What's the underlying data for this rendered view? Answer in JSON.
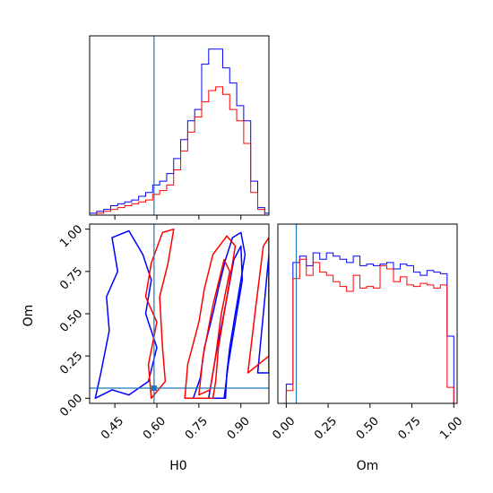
{
  "chart_data": {
    "type": "corner",
    "parameters": [
      "H0",
      "Om"
    ],
    "truth": {
      "H0": 0.59,
      "Om": 0.06
    },
    "truth_color": "#1f77b4",
    "series": [
      {
        "color": "#0000ff"
      },
      {
        "color": "#ff0000"
      }
    ],
    "panels": [
      {
        "id": "hist-H0",
        "type": "step-histogram",
        "x": "H0",
        "xlim": [
          0.36,
          1.0
        ],
        "bin_edges": [
          0.36,
          0.385,
          0.41,
          0.435,
          0.46,
          0.485,
          0.51,
          0.535,
          0.56,
          0.585,
          0.61,
          0.635,
          0.66,
          0.685,
          0.71,
          0.735,
          0.76,
          0.785,
          0.81,
          0.835,
          0.86,
          0.885,
          0.91,
          0.935,
          0.96,
          0.985,
          1.0
        ],
        "series_values": [
          [
            1,
            2,
            3,
            5,
            6,
            7,
            8,
            10,
            12,
            16,
            18,
            22,
            30,
            40,
            50,
            56,
            80,
            88,
            88,
            78,
            70,
            58,
            50,
            18,
            4,
            1
          ],
          [
            0,
            1,
            2,
            3,
            4,
            5,
            6,
            7,
            8,
            11,
            13,
            16,
            24,
            34,
            44,
            52,
            60,
            66,
            68,
            64,
            56,
            50,
            38,
            12,
            3,
            0
          ]
        ],
        "xticks": [
          0.45,
          0.6,
          0.75,
          0.9
        ],
        "show_tick_labels": false
      },
      {
        "id": "contour-H0-Om",
        "type": "contour",
        "x": "H0",
        "y": "Om",
        "xlim": [
          0.36,
          1.0
        ],
        "ylim": [
          -0.03,
          1.03
        ],
        "xticks": [
          0.45,
          0.6,
          0.75,
          0.9
        ],
        "xtick_labels": [
          "0.45",
          "0.60",
          "0.75",
          "0.90"
        ],
        "yticks": [
          0.0,
          0.25,
          0.5,
          0.75,
          1.0
        ],
        "ytick_labels": [
          "0.00",
          "0.25",
          "0.50",
          "0.75",
          "1.00"
        ],
        "xlabel": "H0",
        "ylabel": "Om",
        "series_contours": [
          [
            [
              [
                0.73,
                0.0
              ],
              [
                0.755,
                0.12
              ],
              [
                0.77,
                0.3
              ],
              [
                0.8,
                0.5
              ],
              [
                0.82,
                0.65
              ],
              [
                0.845,
                0.82
              ],
              [
                0.87,
                0.95
              ],
              [
                0.9,
                0.98
              ],
              [
                0.915,
                0.85
              ],
              [
                0.9,
                0.7
              ],
              [
                0.88,
                0.5
              ],
              [
                0.86,
                0.3
              ],
              [
                0.85,
                0.15
              ],
              [
                0.845,
                0.0
              ]
            ],
            [
              [
                0.785,
                0.0
              ],
              [
                0.81,
                0.25
              ],
              [
                0.845,
                0.55
              ],
              [
                0.875,
                0.82
              ],
              [
                0.9,
                0.9
              ],
              [
                0.905,
                0.7
              ],
              [
                0.88,
                0.45
              ],
              [
                0.855,
                0.2
              ],
              [
                0.84,
                0.0
              ]
            ],
            [
              [
                0.38,
                0.0
              ],
              [
                0.4,
                0.15
              ],
              [
                0.43,
                0.4
              ],
              [
                0.42,
                0.6
              ],
              [
                0.46,
                0.75
              ],
              [
                0.44,
                0.95
              ],
              [
                0.5,
                0.99
              ],
              [
                0.55,
                0.85
              ],
              [
                0.58,
                0.7
              ],
              [
                0.56,
                0.5
              ],
              [
                0.6,
                0.3
              ],
              [
                0.57,
                0.1
              ],
              [
                0.5,
                0.02
              ],
              [
                0.44,
                0.05
              ]
            ],
            [
              [
                0.96,
                0.15
              ],
              [
                0.98,
                0.5
              ],
              [
                1.0,
                0.85
              ],
              [
                1.0,
                0.15
              ]
            ]
          ],
          [
            [
              [
                0.7,
                0.0
              ],
              [
                0.71,
                0.2
              ],
              [
                0.75,
                0.45
              ],
              [
                0.77,
                0.65
              ],
              [
                0.8,
                0.85
              ],
              [
                0.85,
                0.96
              ],
              [
                0.88,
                0.9
              ],
              [
                0.86,
                0.7
              ],
              [
                0.84,
                0.5
              ],
              [
                0.82,
                0.3
              ],
              [
                0.81,
                0.1
              ],
              [
                0.8,
                0.0
              ]
            ],
            [
              [
                0.75,
                0.02
              ],
              [
                0.765,
                0.25
              ],
              [
                0.8,
                0.55
              ],
              [
                0.84,
                0.82
              ],
              [
                0.86,
                0.75
              ],
              [
                0.83,
                0.5
              ],
              [
                0.81,
                0.25
              ],
              [
                0.79,
                0.05
              ]
            ],
            [
              [
                0.58,
                0.0
              ],
              [
                0.57,
                0.2
              ],
              [
                0.6,
                0.45
              ],
              [
                0.56,
                0.6
              ],
              [
                0.58,
                0.8
              ],
              [
                0.62,
                0.98
              ],
              [
                0.66,
                1.0
              ],
              [
                0.64,
                0.8
              ],
              [
                0.61,
                0.6
              ],
              [
                0.62,
                0.3
              ],
              [
                0.63,
                0.1
              ]
            ],
            [
              [
                0.925,
                0.15
              ],
              [
                0.95,
                0.5
              ],
              [
                0.98,
                0.9
              ],
              [
                1.0,
                0.95
              ],
              [
                1.0,
                0.25
              ]
            ]
          ]
        ]
      },
      {
        "id": "hist-Om",
        "type": "step-histogram",
        "x": "Om",
        "xlim": [
          -0.05,
          1.02
        ],
        "bin_edges": [
          0.0,
          0.04,
          0.08,
          0.12,
          0.16,
          0.2,
          0.24,
          0.28,
          0.32,
          0.36,
          0.4,
          0.44,
          0.48,
          0.52,
          0.56,
          0.6,
          0.64,
          0.68,
          0.72,
          0.76,
          0.8,
          0.84,
          0.88,
          0.92,
          0.96,
          1.0
        ],
        "series_values": [
          [
            12,
            88,
            92,
            86,
            94,
            90,
            94,
            92,
            90,
            88,
            92,
            86,
            87,
            86,
            87,
            88,
            84,
            87,
            86,
            82,
            80,
            83,
            82,
            81,
            42
          ],
          [
            8,
            78,
            90,
            80,
            88,
            82,
            80,
            76,
            73,
            70,
            80,
            72,
            73,
            72,
            86,
            84,
            76,
            79,
            74,
            73,
            75,
            74,
            72,
            74,
            10
          ]
        ],
        "xticks": [
          0.0,
          0.25,
          0.5,
          0.75,
          1.0
        ],
        "xtick_labels": [
          "0.00",
          "0.25",
          "0.50",
          "0.75",
          "1.00"
        ],
        "xlabel": "Om"
      }
    ]
  }
}
